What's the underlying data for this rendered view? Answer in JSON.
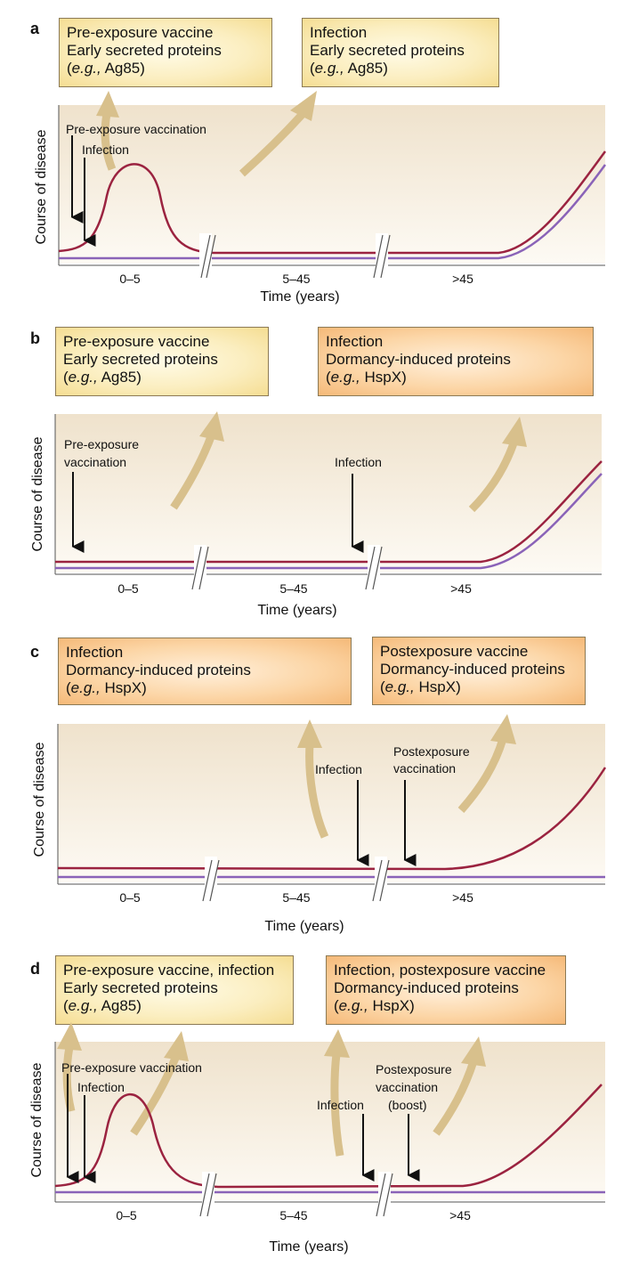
{
  "panels": [
    {
      "label": "a",
      "box_left": {
        "line1": "Pre-exposure vaccine",
        "line2": "Early secreted proteins",
        "eg": "e.g.,",
        "protein": "Ag85",
        "color": "yellow"
      },
      "box_right": {
        "line1": "Infection",
        "line2": "Early secreted proteins",
        "eg": "e.g.,",
        "protein": "Ag85",
        "color": "yellow"
      },
      "annotations": [
        "Pre-exposure vaccination",
        "Infection"
      ]
    },
    {
      "label": "b",
      "box_left": {
        "line1": "Pre-exposure vaccine",
        "line2": "Early secreted proteins",
        "eg": "e.g.,",
        "protein": "Ag85",
        "color": "yellow"
      },
      "box_right": {
        "line1": "Infection",
        "line2": "Dormancy-induced proteins",
        "eg": "e.g.,",
        "protein": "HspX",
        "color": "orange"
      },
      "annotations": [
        "Pre-exposure",
        "vaccination",
        "Infection"
      ]
    },
    {
      "label": "c",
      "box_left": {
        "line1": "Infection",
        "line2": "Dormancy-induced proteins",
        "eg": "e.g.,",
        "protein": "HspX",
        "color": "orange"
      },
      "box_right": {
        "line1": "Postexposure vaccine",
        "line2": "Dormancy-induced proteins",
        "eg": "e.g.,",
        "protein": "HspX",
        "color": "orange"
      },
      "annotations": [
        "Infection",
        "Postexposure",
        "vaccination"
      ]
    },
    {
      "label": "d",
      "box_left": {
        "line1": "Pre-exposure vaccine, infection",
        "line2": "Early secreted proteins",
        "eg": "e.g.,",
        "protein": "Ag85",
        "color": "yellow"
      },
      "box_right": {
        "line1": "Infection, postexposure vaccine",
        "line2": "Dormancy-induced proteins",
        "eg": "e.g.,",
        "protein": "HspX",
        "color": "orange"
      },
      "annotations": [
        "Pre-exposure vaccination",
        "Infection",
        "Infection",
        "Postexposure",
        "vaccination",
        "(boost)"
      ]
    }
  ],
  "axis": {
    "ylabel": "Course of disease",
    "xlabel": "Time (years)",
    "ticks": [
      "0–5",
      "5–45",
      ">45"
    ]
  },
  "colors": {
    "disease_curve": "#9b2340",
    "baseline_curve": "#8a63b8",
    "big_arrow": "#d8c08c",
    "plot_bg_top": "#efe2cc",
    "plot_bg_bottom": "#fdfaf4"
  }
}
